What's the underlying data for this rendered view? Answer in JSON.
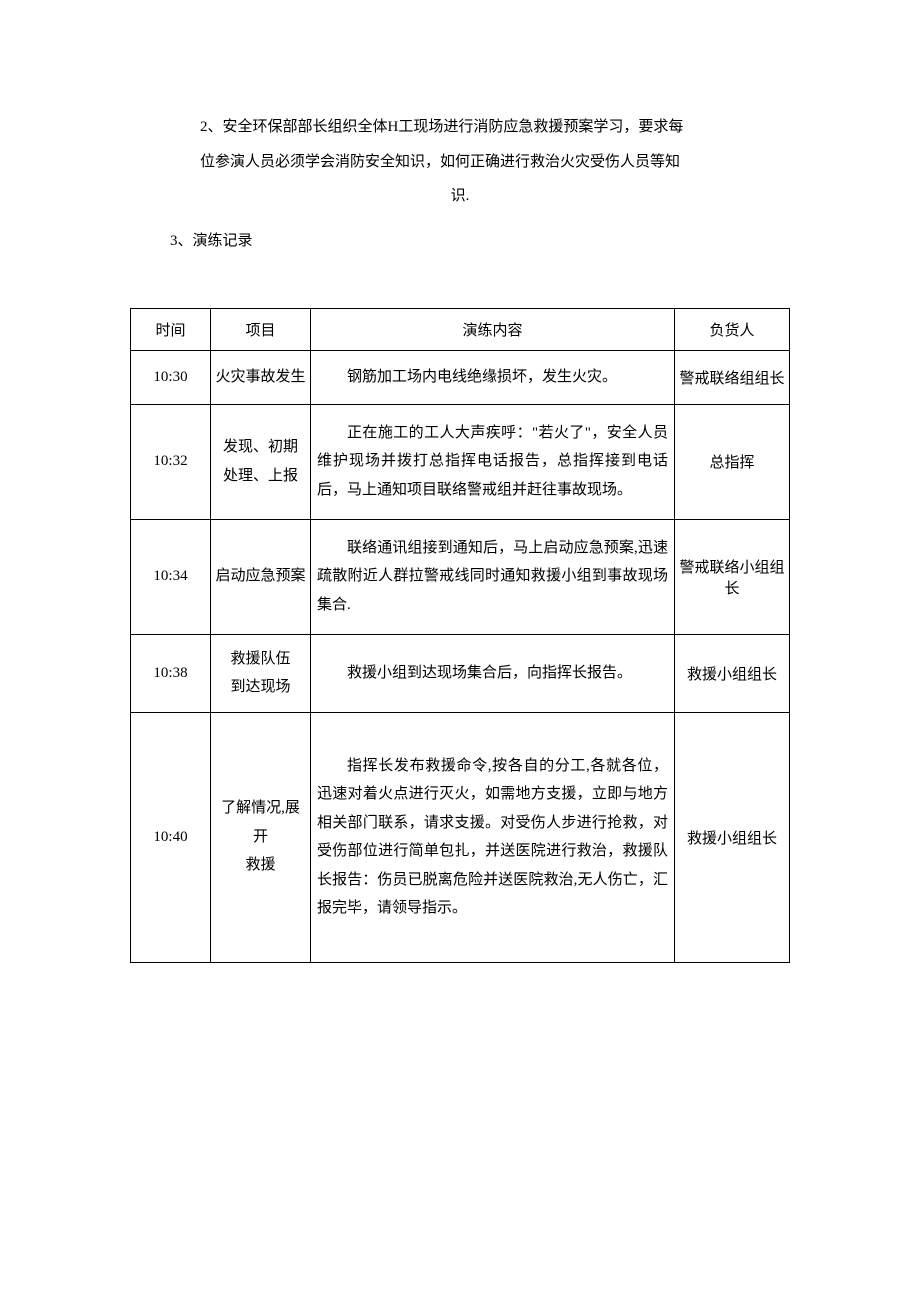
{
  "paragraph2": {
    "line1": "2、安全环保部部长组织全体H工现场进行消防应急救援预案学习，要求每",
    "line2": "位参演人员必须学会消防安全知识，如何正确进行救治火灾受伤人员等知",
    "line3": "识."
  },
  "paragraph3": "3、演练记录",
  "table": {
    "headers": {
      "time": "时间",
      "item": "项目",
      "content": "演练内容",
      "person": "负货人"
    },
    "rows": [
      {
        "time": "10:30",
        "item": "火灾事故发生",
        "content": "钢筋加工场内电线绝缘损坏，发生火灾。",
        "person": "警戒联络组组长"
      },
      {
        "time": "10:32",
        "item_line1": "发现、初期",
        "item_line2": "处理、上报",
        "content": "正在施工的工人大声疾呼：\"若火了\"，安全人员维护现场并拨打总指挥电话报告，总指挥接到电话后，马上通知项目联络警戒组并赶往事故现场。",
        "person": "总指挥"
      },
      {
        "time": "10:34",
        "item": "启动应急预案",
        "content": "联络通讯组接到通知后，马上启动应急预案,迅速疏散附近人群拉警戒线同时通知救援小组到事故现场集合.",
        "person": "警戒联络小组组长"
      },
      {
        "time": "10:38",
        "item_line1": "救援队伍",
        "item_line2": "到达现场",
        "content": "救援小组到达现场集合后，向指挥长报告。",
        "person": "救援小组组长"
      },
      {
        "time": "10:40",
        "item_line1": "了解情况,展开",
        "item_line2": "救援",
        "content": "指挥长发布救援命令,按各自的分工,各就各位，迅速对着火点进行灭火，如需地方支援，立即与地方相关部门联系，请求支援。对受伤人步进行抢救，对受伤部位进行简单包扎，并送医院进行救治，救援队长报告：伤员已脱离危险并送医院救治,无人伤亡，汇报完毕，请领导指示。",
        "person": "救援小组组长"
      }
    ]
  },
  "styles": {
    "body_bg": "#ffffff",
    "text_color": "#000000",
    "border_color": "#000000",
    "font_size_body": 15,
    "font_family": "SimSun"
  }
}
